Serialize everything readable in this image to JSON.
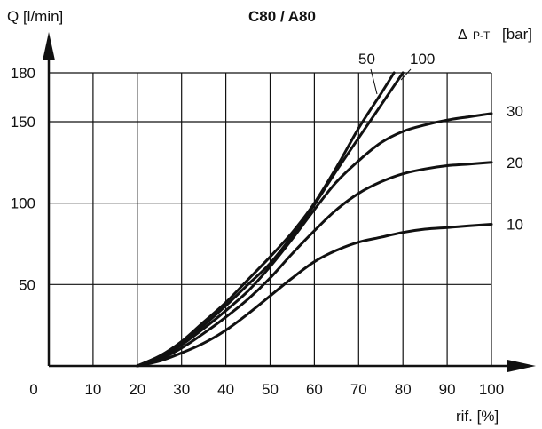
{
  "chart_data": {
    "type": "line",
    "title": "C80 / A80",
    "ylabel": "Q [l/min]",
    "xlabel": "rif. [%]",
    "legend_title_symbol": "Δ",
    "legend_title_sub": "P-T",
    "legend_title_unit": "[bar]",
    "origin_label": "0",
    "xlim": [
      0,
      100
    ],
    "ylim": [
      0,
      180
    ],
    "x_ticks": [
      "10",
      "20",
      "30",
      "40",
      "50",
      "60",
      "70",
      "80",
      "90",
      "100"
    ],
    "y_ticks": [
      "50",
      "100",
      "150",
      "180"
    ],
    "grid": true,
    "series": [
      {
        "name": "10",
        "points": [
          [
            20,
            0
          ],
          [
            25,
            3
          ],
          [
            30,
            8
          ],
          [
            35,
            14
          ],
          [
            40,
            22
          ],
          [
            45,
            32
          ],
          [
            50,
            43
          ],
          [
            55,
            54
          ],
          [
            60,
            64
          ],
          [
            65,
            71
          ],
          [
            70,
            76
          ],
          [
            75,
            79
          ],
          [
            80,
            82
          ],
          [
            85,
            84
          ],
          [
            90,
            85
          ],
          [
            95,
            86
          ],
          [
            100,
            87
          ]
        ]
      },
      {
        "name": "20",
        "points": [
          [
            20,
            0
          ],
          [
            25,
            4
          ],
          [
            30,
            11
          ],
          [
            35,
            20
          ],
          [
            40,
            30
          ],
          [
            45,
            41
          ],
          [
            50,
            54
          ],
          [
            55,
            69
          ],
          [
            60,
            83
          ],
          [
            65,
            96
          ],
          [
            70,
            106
          ],
          [
            75,
            113
          ],
          [
            80,
            118
          ],
          [
            85,
            121
          ],
          [
            90,
            123
          ],
          [
            95,
            124
          ],
          [
            100,
            125
          ]
        ]
      },
      {
        "name": "30",
        "points": [
          [
            20,
            0
          ],
          [
            25,
            5
          ],
          [
            30,
            13
          ],
          [
            35,
            23
          ],
          [
            40,
            34
          ],
          [
            45,
            46
          ],
          [
            50,
            61
          ],
          [
            55,
            78
          ],
          [
            60,
            96
          ],
          [
            65,
            113
          ],
          [
            70,
            126
          ],
          [
            75,
            137
          ],
          [
            80,
            144
          ],
          [
            85,
            148
          ],
          [
            90,
            151
          ],
          [
            95,
            153
          ],
          [
            100,
            155
          ]
        ]
      },
      {
        "name": "100",
        "points": [
          [
            20,
            0
          ],
          [
            25,
            6
          ],
          [
            30,
            14
          ],
          [
            35,
            25
          ],
          [
            40,
            37
          ],
          [
            45,
            50
          ],
          [
            50,
            63
          ],
          [
            55,
            80
          ],
          [
            60,
            99
          ],
          [
            65,
            120
          ],
          [
            70,
            140
          ],
          [
            75,
            160
          ],
          [
            80,
            180
          ]
        ]
      },
      {
        "name": "50",
        "points": [
          [
            20,
            0
          ],
          [
            25,
            6
          ],
          [
            30,
            15
          ],
          [
            35,
            27
          ],
          [
            40,
            39
          ],
          [
            45,
            53
          ],
          [
            50,
            67
          ],
          [
            55,
            82
          ],
          [
            60,
            100
          ],
          [
            65,
            122
          ],
          [
            70,
            146
          ],
          [
            75,
            167
          ],
          [
            78,
            180
          ]
        ]
      }
    ]
  }
}
